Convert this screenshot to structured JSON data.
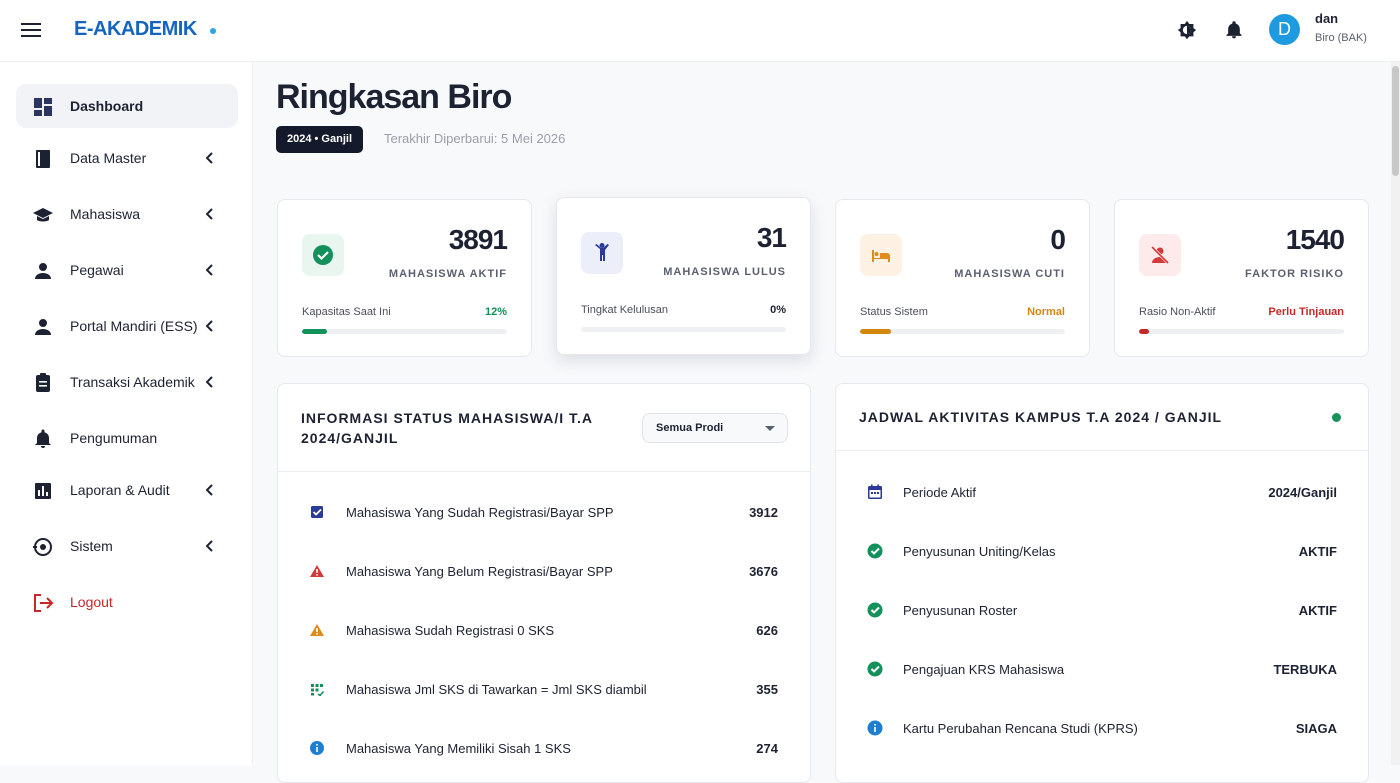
{
  "header": {
    "brand": "E-AKADEMIK",
    "user_initial": "D",
    "user_name": "dan",
    "user_role": "Biro (BAK)"
  },
  "sidebar": {
    "items": [
      {
        "label": "Dashboard",
        "expandable": false
      },
      {
        "label": "Data Master",
        "expandable": true
      },
      {
        "label": "Mahasiswa",
        "expandable": true
      },
      {
        "label": "Pegawai",
        "expandable": true
      },
      {
        "label": "Portal Mandiri (ESS)",
        "expandable": true
      },
      {
        "label": "Transaksi Akademik",
        "expandable": true
      },
      {
        "label": "Pengumuman",
        "expandable": false
      },
      {
        "label": "Laporan & Audit",
        "expandable": true
      },
      {
        "label": "Sistem",
        "expandable": true
      },
      {
        "label": "Logout",
        "expandable": false
      }
    ]
  },
  "page": {
    "title": "Ringkasan Biro",
    "badge": "2024 • Ganjil",
    "updated": "Terakhir Diperbarui: 5 Mei 2026"
  },
  "stats": [
    {
      "value": 3891,
      "label": "MAHASISWA AKTIF",
      "sub": "Kapasitas Saat Ini",
      "status": {
        "value": 12,
        "label": "12%"
      }
    },
    {
      "value": 31,
      "label": "MAHASISWA LULUS",
      "sub": "Tingkat Kelulusan",
      "status": {
        "value": 0,
        "label": "0%"
      }
    },
    {
      "value": 0,
      "label": "MAHASISWA CUTI",
      "sub": "Status Sistem",
      "status": "Normal"
    },
    {
      "value": 1540,
      "label": "FAKTOR RISIKO",
      "sub": "Rasio Non-Aktif",
      "status": "Perlu Tinjauan"
    }
  ],
  "status_panel": {
    "title": "INFORMASI STATUS MAHASISWA/I T.A 2024/GANJIL",
    "filter": "Semua Prodi",
    "rows": [
      {
        "label": "Mahasiswa Yang Sudah Registrasi/Bayar SPP",
        "value": 3912
      },
      {
        "label": "Mahasiswa Yang Belum Registrasi/Bayar SPP",
        "value": 3676
      },
      {
        "label": "Mahasiswa Sudah Registrasi 0 SKS",
        "value": 626
      },
      {
        "label": "Mahasiswa Jml SKS di Tawarkan = Jml SKS diambil",
        "value": 355
      },
      {
        "label": "Mahasiswa Yang Memiliki Sisah 1 SKS",
        "value": 274
      }
    ]
  },
  "schedule_panel": {
    "title": "JADWAL AKTIVITAS KAMPUS T.A 2024 / GANJIL",
    "rows": [
      {
        "label": "Periode Aktif",
        "value": "2024/Ganjil"
      },
      {
        "label": "Penyusunan Uniting/Kelas",
        "value": "AKTIF"
      },
      {
        "label": "Penyusunan Roster",
        "value": "AKTIF"
      },
      {
        "label": "Pengajuan KRS Mahasiswa",
        "value": "TERBUKA"
      },
      {
        "label": "Kartu Perubahan Rencana Studi (KPRS)",
        "value": "SIAGA"
      }
    ]
  }
}
